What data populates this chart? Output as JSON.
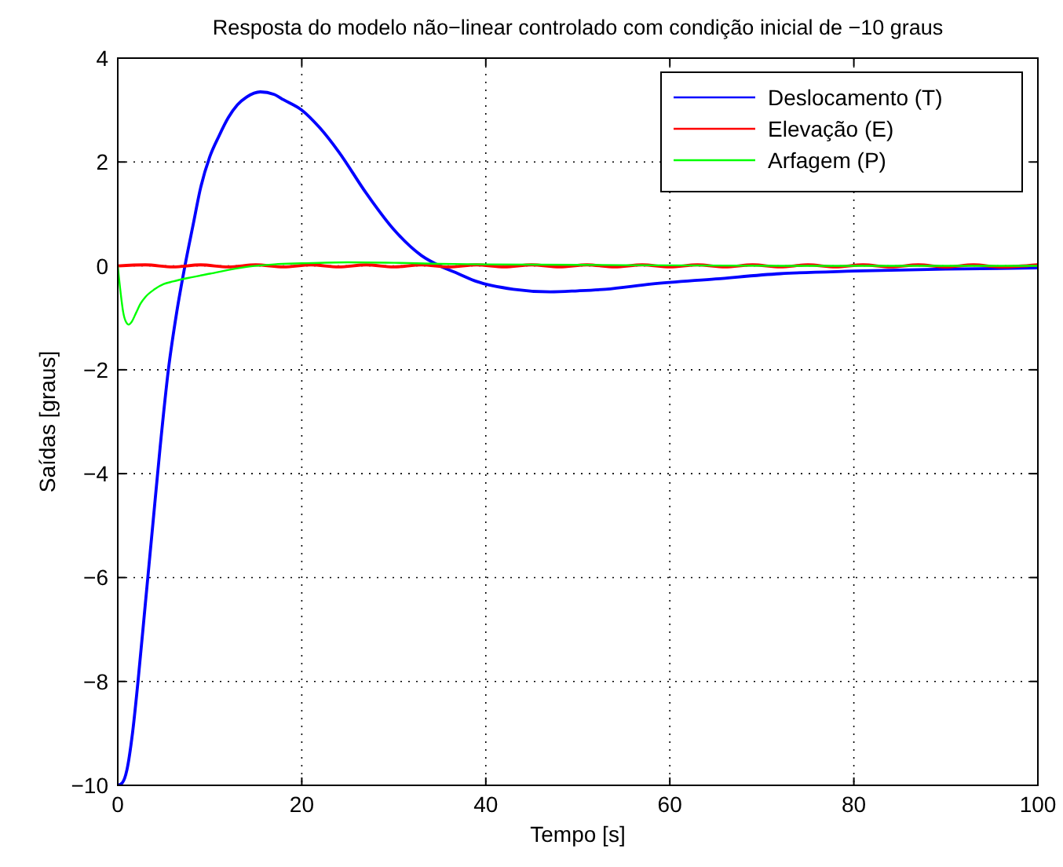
{
  "chart_data": {
    "type": "line",
    "title": "Resposta do modelo não−linear controlado com condição inicial de −10 graus",
    "xlabel": "Tempo [s]",
    "ylabel": "Saídas [graus]",
    "xlim": [
      0,
      100
    ],
    "xticks": [
      0,
      20,
      40,
      60,
      80,
      100
    ],
    "ylim": [
      -10,
      4
    ],
    "yticks": [
      {
        "value": -10,
        "label": "−10"
      },
      {
        "value": -8,
        "label": "−8"
      },
      {
        "value": -6,
        "label": "−6"
      },
      {
        "value": -4,
        "label": "−4"
      },
      {
        "value": -2,
        "label": "−2"
      },
      0,
      2,
      4
    ],
    "grid": true,
    "legend": "top right",
    "line_style": "solid",
    "series": [
      {
        "name": "Deslocamento (T)",
        "color": "#0000ff",
        "x": [
          0,
          0.5,
          1,
          1.6,
          2.2,
          3,
          3.8,
          4.6,
          5.5,
          6.4,
          7.3,
          8.2,
          9,
          10,
          11,
          12,
          13,
          14,
          15.5,
          17,
          18,
          20,
          22,
          24,
          27,
          30,
          33,
          35,
          37,
          39,
          43,
          47,
          50,
          53,
          58,
          65,
          72,
          80,
          90,
          100
        ],
        "values": [
          -10,
          -9.95,
          -9.7,
          -9.0,
          -8.0,
          -6.5,
          -5.0,
          -3.5,
          -2.0,
          -0.9,
          0,
          0.8,
          1.5,
          2.1,
          2.5,
          2.85,
          3.1,
          3.25,
          3.35,
          3.3,
          3.2,
          3.0,
          2.65,
          2.2,
          1.4,
          0.7,
          0.2,
          0,
          -0.15,
          -0.3,
          -0.45,
          -0.5,
          -0.48,
          -0.45,
          -0.35,
          -0.25,
          -0.15,
          -0.1,
          -0.06,
          -0.04
        ]
      },
      {
        "name": "Elevação (E)",
        "color": "#ff0000",
        "x": [
          0,
          3,
          6,
          9,
          12,
          15,
          18,
          21,
          24,
          27,
          30,
          33,
          36,
          39,
          42,
          45,
          48,
          51,
          54,
          57,
          60,
          63,
          66,
          69,
          72,
          75,
          78,
          81,
          84,
          87,
          90,
          93,
          96,
          100
        ],
        "values": [
          0,
          0.02,
          -0.02,
          0.02,
          -0.02,
          0.02,
          -0.02,
          0.02,
          -0.02,
          0.02,
          -0.02,
          0.02,
          -0.02,
          0.02,
          -0.02,
          0.02,
          -0.02,
          0.02,
          -0.02,
          0.02,
          -0.02,
          0.02,
          -0.02,
          0.02,
          -0.02,
          0.02,
          -0.02,
          0.02,
          -0.02,
          0.02,
          -0.02,
          0.02,
          -0.02,
          0.02
        ]
      },
      {
        "name": "Arfagem (P)",
        "color": "#00ff00",
        "x": [
          0,
          0.3,
          0.6,
          0.9,
          1.2,
          1.5,
          2,
          2.5,
          3,
          4,
          5,
          6,
          8,
          10,
          14,
          17,
          20,
          25,
          30,
          35,
          40,
          50,
          60,
          80,
          100
        ],
        "values": [
          0,
          -0.5,
          -0.9,
          -1.08,
          -1.13,
          -1.08,
          -0.9,
          -0.72,
          -0.6,
          -0.45,
          -0.35,
          -0.3,
          -0.22,
          -0.15,
          -0.02,
          0.03,
          0.05,
          0.07,
          0.06,
          0.04,
          0.03,
          0.02,
          0.01,
          0,
          0
        ]
      }
    ]
  }
}
